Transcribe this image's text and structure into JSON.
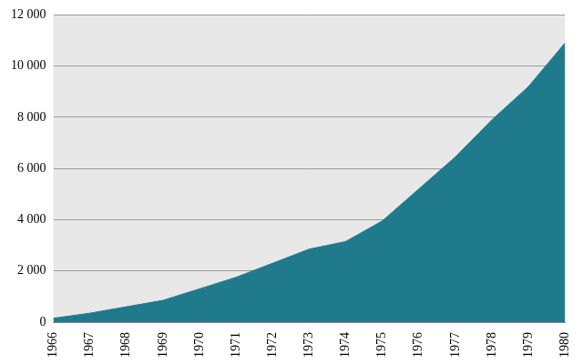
{
  "chart_data": {
    "type": "area",
    "categories": [
      "1966",
      "1967",
      "1968",
      "1969",
      "1970",
      "1971",
      "1972",
      "1973",
      "1974",
      "1975",
      "1976",
      "1977",
      "1978",
      "1979",
      "1980"
    ],
    "values": [
      150,
      350,
      600,
      850,
      1300,
      1750,
      2300,
      2850,
      3150,
      3950,
      5200,
      6450,
      7900,
      9200,
      10900
    ],
    "color": "#1f7a8c",
    "ylim": [
      0,
      12000
    ],
    "yticks": [
      0,
      {
        "value": 2000,
        "label": "2 000"
      },
      {
        "value": 4000,
        "label": "4 000"
      },
      {
        "value": 6000,
        "label": "6 000"
      },
      {
        "value": 8000,
        "label": "8 000"
      },
      {
        "value": 10000,
        "label": "10 000"
      },
      {
        "value": 12000,
        "label": "12 000"
      }
    ],
    "grid": true
  }
}
